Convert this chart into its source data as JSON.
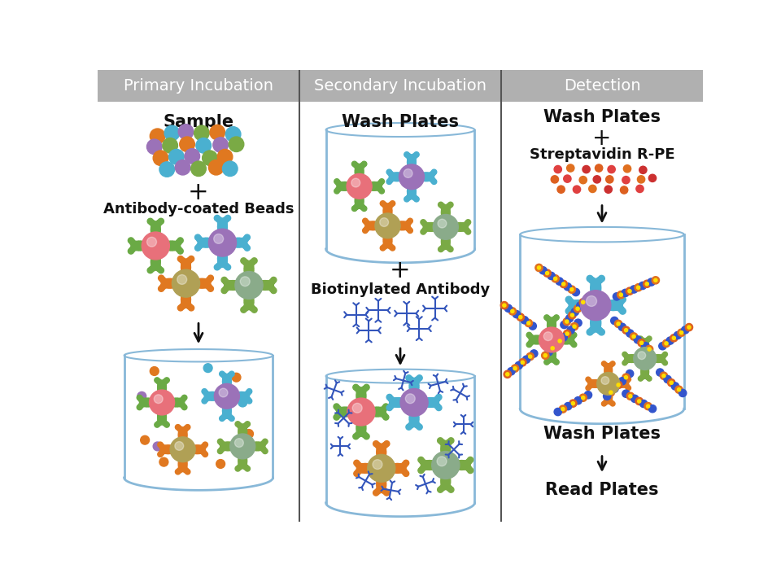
{
  "panel_titles": [
    "Primary Incubation",
    "Secondary Incubation",
    "Detection"
  ],
  "panel_title_bg": "#b0b0b0",
  "panel_title_color": "#ffffff",
  "panel_title_fontsize": 14,
  "divider_color": "#555555",
  "text_color": "#111111",
  "bead_colors": {
    "pink": "#e8707a",
    "purple": "#9b72b8",
    "olive": "#b0a055",
    "sage": "#8aab8a"
  },
  "arm_colors": {
    "pink": "#6aaa45",
    "purple": "#4ab0d0",
    "olive": "#e07820",
    "sage": "#7aaa45"
  },
  "sample_colors": [
    "#e07820",
    "#4ab0d0",
    "#9b72b8",
    "#7aaa45"
  ],
  "cup_color": "#88b8d8",
  "biotin_color": "#3355bb",
  "strep_colors": [
    "#e04040",
    "#e07020",
    "#cc3030",
    "#dd6020"
  ],
  "strep_center": "#ffdd00"
}
